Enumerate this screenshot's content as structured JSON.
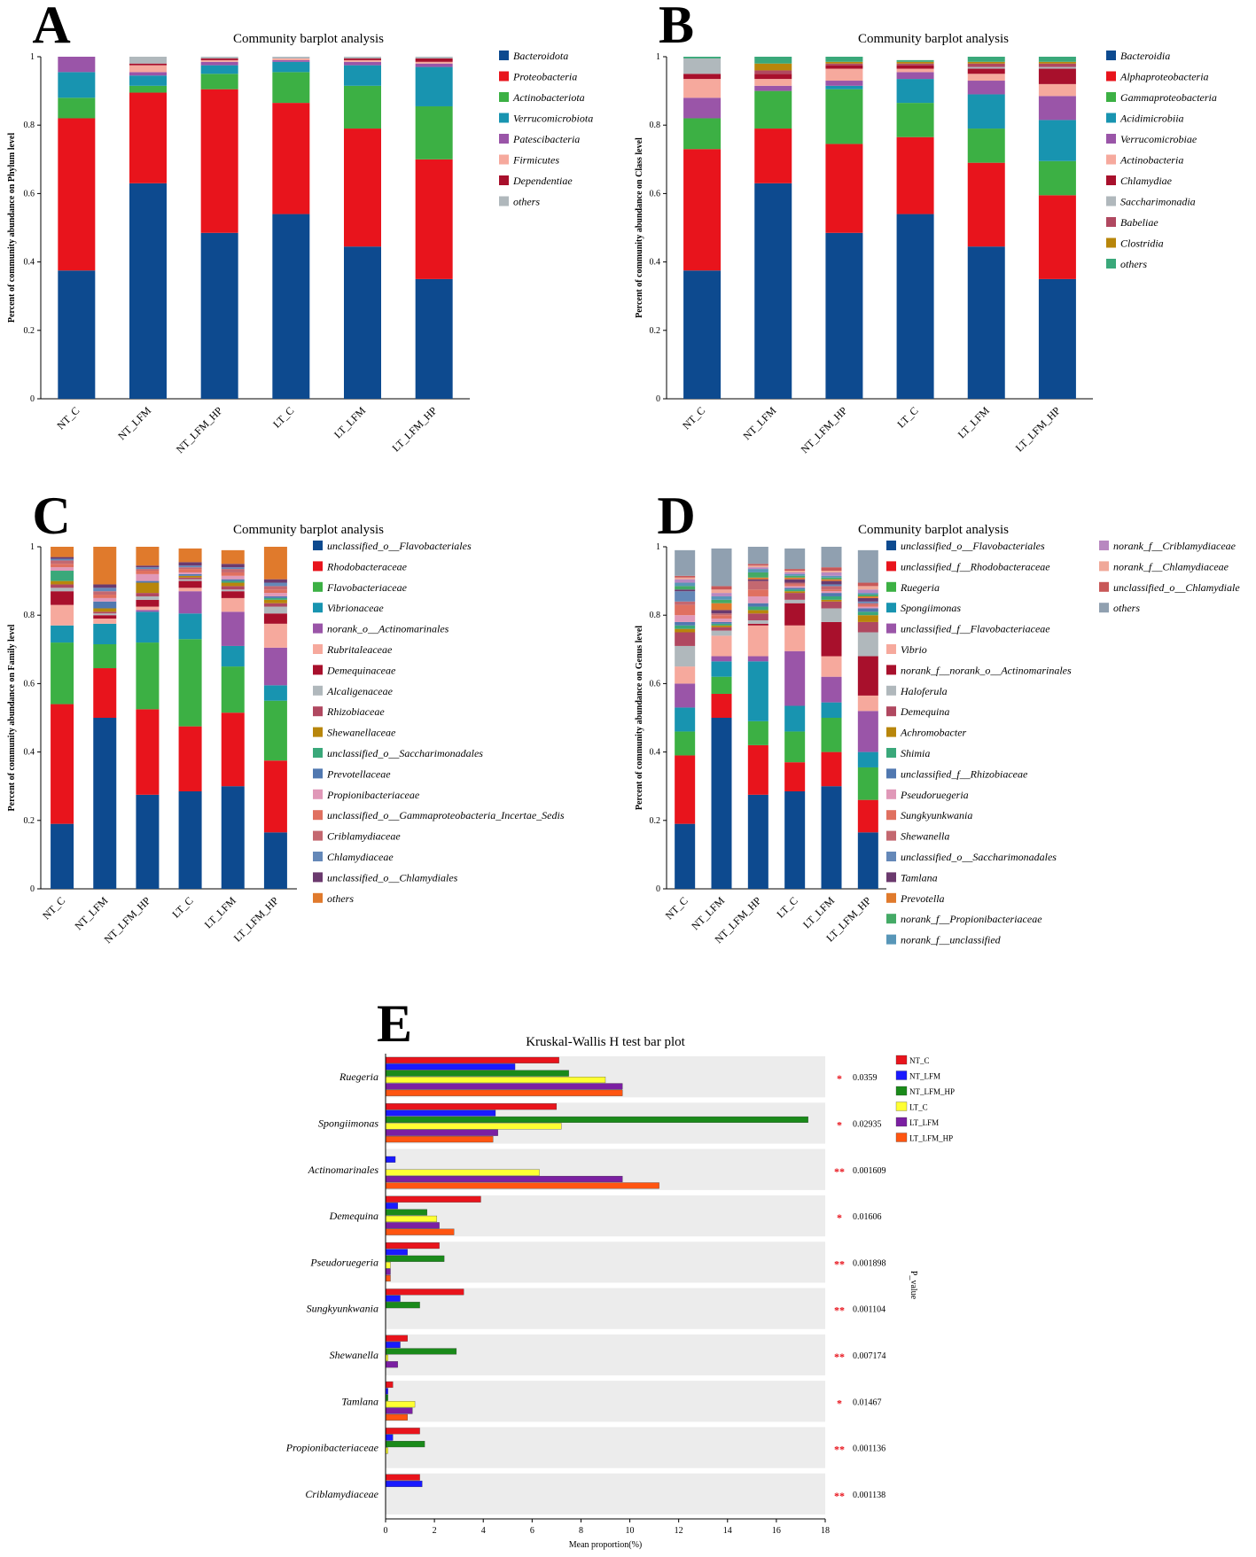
{
  "colors": {
    "navy": "#0d4a8f",
    "red": "#e8141c",
    "green": "#3cb044",
    "teal": "#1894b0",
    "purple": "#9a55a8",
    "salmon": "#f6a99d",
    "crimson": "#a8102c",
    "gray": "#b0b8bc",
    "rosebrown": "#b04860",
    "gold": "#b8860b",
    "mint": "#3aa87a",
    "slate": "#5078b0",
    "pink": "#e098b8",
    "coral": "#e07060",
    "dusty": "#c46870",
    "steel": "#6488b8",
    "plum": "#6b3a6e",
    "orange": "#e07a2c",
    "seagreen": "#44aa66",
    "lightblue": "#5896b8",
    "lilac": "#b888c0",
    "peach": "#f0a898",
    "brick": "#c85858",
    "cadet": "#90a0b0",
    "panelBg": "#ececec"
  },
  "chart_data": [
    {
      "panel": "A",
      "type": "bar",
      "stacked": true,
      "title": "Community barplot analysis",
      "xlabel": "",
      "ylabel": "Percent of community abundance on Phylum level",
      "ylim": [
        0,
        1
      ],
      "yticks": [
        "0",
        "0.2",
        "0.4",
        "0.6",
        "0.8",
        "1"
      ],
      "categories": [
        "NT_C",
        "NT_LFM",
        "NT_LFM_HP",
        "LT_C",
        "LT_LFM",
        "LT_LFM_HP"
      ],
      "series": [
        {
          "name": "Bacteroidota",
          "color": "#0d4a8f",
          "values": [
            0.375,
            0.63,
            0.485,
            0.54,
            0.445,
            0.35
          ]
        },
        {
          "name": "Proteobacteria",
          "color": "#e8141c",
          "values": [
            0.445,
            0.265,
            0.42,
            0.325,
            0.345,
            0.35
          ]
        },
        {
          "name": "Actinobacteriota",
          "color": "#3cb044",
          "values": [
            0.06,
            0.02,
            0.045,
            0.09,
            0.125,
            0.155
          ]
        },
        {
          "name": "Verrucomicrobiota",
          "color": "#1894b0",
          "values": [
            0.075,
            0.03,
            0.025,
            0.03,
            0.06,
            0.115
          ]
        },
        {
          "name": "Patescibacteria",
          "color": "#9a55a8",
          "values": [
            0.045,
            0.01,
            0.01,
            0.005,
            0.01,
            0.01
          ]
        },
        {
          "name": "Firmicutes",
          "color": "#f6a99d",
          "values": [
            0.0,
            0.02,
            0.005,
            0.005,
            0.005,
            0.005
          ]
        },
        {
          "name": "Dependentiae",
          "color": "#a8102c",
          "values": [
            0.0,
            0.005,
            0.005,
            0.0,
            0.005,
            0.01
          ]
        },
        {
          "name": "others",
          "color": "#b0b8bc",
          "values": [
            0.0,
            0.02,
            0.005,
            0.005,
            0.005,
            0.005
          ]
        }
      ]
    },
    {
      "panel": "B",
      "type": "bar",
      "stacked": true,
      "title": "Community barplot analysis",
      "xlabel": "",
      "ylabel": "Percent of community abundance on Class level",
      "ylim": [
        0,
        1
      ],
      "yticks": [
        "0",
        "0.2",
        "0.4",
        "0.6",
        "0.8",
        "1"
      ],
      "categories": [
        "NT_C",
        "NT_LFM",
        "NT_LFM_HP",
        "LT_C",
        "LT_LFM",
        "LT_LFM_HP"
      ],
      "series": [
        {
          "name": "Bacteroidia",
          "color": "#0d4a8f",
          "values": [
            0.375,
            0.63,
            0.485,
            0.54,
            0.445,
            0.35
          ]
        },
        {
          "name": "Alphaproteobacteria",
          "color": "#e8141c",
          "values": [
            0.355,
            0.16,
            0.26,
            0.225,
            0.245,
            0.245
          ]
        },
        {
          "name": "Gammaproteobacteria",
          "color": "#3cb044",
          "values": [
            0.09,
            0.11,
            0.16,
            0.1,
            0.1,
            0.1
          ]
        },
        {
          "name": "Acidimicrobiia",
          "color": "#1894b0",
          "values": [
            0.0,
            0.0,
            0.01,
            0.07,
            0.1,
            0.12
          ]
        },
        {
          "name": "Verrucomicrobiae",
          "color": "#9a55a8",
          "values": [
            0.06,
            0.015,
            0.015,
            0.02,
            0.04,
            0.07
          ]
        },
        {
          "name": "Actinobacteria",
          "color": "#f6a99d",
          "values": [
            0.055,
            0.02,
            0.035,
            0.01,
            0.02,
            0.035
          ]
        },
        {
          "name": "Chlamydiae",
          "color": "#a8102c",
          "values": [
            0.015,
            0.015,
            0.01,
            0.01,
            0.015,
            0.045
          ]
        },
        {
          "name": "Saccharimonadia",
          "color": "#b0b8bc",
          "values": [
            0.045,
            0.0,
            0.0,
            0.0,
            0.005,
            0.005
          ]
        },
        {
          "name": "Babeliae",
          "color": "#b04860",
          "values": [
            0.0,
            0.01,
            0.005,
            0.005,
            0.01,
            0.01
          ]
        },
        {
          "name": "Clostridia",
          "color": "#b8860b",
          "values": [
            0.0,
            0.02,
            0.005,
            0.005,
            0.005,
            0.005
          ]
        },
        {
          "name": "others",
          "color": "#3aa87a",
          "values": [
            0.005,
            0.02,
            0.015,
            0.005,
            0.015,
            0.015
          ]
        }
      ]
    },
    {
      "panel": "C",
      "type": "bar",
      "stacked": true,
      "title": "Community barplot analysis",
      "xlabel": "",
      "ylabel": "Percent of community abundance on Family level",
      "ylim": [
        0,
        1
      ],
      "yticks": [
        "0",
        "0.2",
        "0.4",
        "0.6",
        "0.8",
        "1"
      ],
      "categories": [
        "NT_C",
        "NT_LFM",
        "NT_LFM_HP",
        "LT_C",
        "LT_LFM",
        "LT_LFM_HP"
      ],
      "series": [
        {
          "name": "unclassified_o__Flavobacteriales",
          "color": "#0d4a8f",
          "values": [
            0.19,
            0.5,
            0.275,
            0.285,
            0.3,
            0.165
          ]
        },
        {
          "name": "Rhodobacteraceae",
          "color": "#e8141c",
          "values": [
            0.35,
            0.145,
            0.25,
            0.19,
            0.215,
            0.21
          ]
        },
        {
          "name": "Flavobacteriaceae",
          "color": "#3cb044",
          "values": [
            0.18,
            0.07,
            0.195,
            0.255,
            0.135,
            0.175
          ]
        },
        {
          "name": "Vibrionaceae",
          "color": "#1894b0",
          "values": [
            0.05,
            0.06,
            0.09,
            0.075,
            0.06,
            0.045
          ]
        },
        {
          "name": "norank_o__Actinomarinales",
          "color": "#9a55a8",
          "values": [
            0.0,
            0.0,
            0.005,
            0.065,
            0.1,
            0.11
          ]
        },
        {
          "name": "Rubritaleaceae",
          "color": "#f6a99d",
          "values": [
            0.06,
            0.015,
            0.01,
            0.01,
            0.04,
            0.07
          ]
        },
        {
          "name": "Demequinaceae",
          "color": "#a8102c",
          "values": [
            0.04,
            0.01,
            0.02,
            0.02,
            0.02,
            0.03
          ]
        },
        {
          "name": "Alcaligenaceae",
          "color": "#b0b8bc",
          "values": [
            0.01,
            0.005,
            0.01,
            0.005,
            0.005,
            0.02
          ]
        },
        {
          "name": "Rhizobiaceae",
          "color": "#b04860",
          "values": [
            0.01,
            0.005,
            0.01,
            0.005,
            0.01,
            0.01
          ]
        },
        {
          "name": "Shewanellaceae",
          "color": "#b8860b",
          "values": [
            0.01,
            0.01,
            0.03,
            0.005,
            0.01,
            0.01
          ]
        },
        {
          "name": "unclassified_o__Saccharimonadales",
          "color": "#3aa87a",
          "values": [
            0.03,
            0.0,
            0.0,
            0.0,
            0.005,
            0.005
          ]
        },
        {
          "name": "Prevotellaceae",
          "color": "#5078b0",
          "values": [
            0.0,
            0.02,
            0.005,
            0.005,
            0.005,
            0.005
          ]
        },
        {
          "name": "Propionibacteriaceae",
          "color": "#e098b8",
          "values": [
            0.01,
            0.01,
            0.02,
            0.005,
            0.01,
            0.01
          ]
        },
        {
          "name": "unclassified_o__Gammaproteobacteria_Incertae_Sedis",
          "color": "#e07060",
          "values": [
            0.01,
            0.01,
            0.01,
            0.01,
            0.01,
            0.01
          ]
        },
        {
          "name": "Criblamydiaceae",
          "color": "#c46870",
          "values": [
            0.01,
            0.01,
            0.005,
            0.005,
            0.01,
            0.01
          ]
        },
        {
          "name": "Chlamydiaceae",
          "color": "#6488b8",
          "values": [
            0.005,
            0.01,
            0.005,
            0.005,
            0.005,
            0.01
          ]
        },
        {
          "name": "unclassified_o__Chlamydiales",
          "color": "#6b3a6e",
          "values": [
            0.005,
            0.01,
            0.005,
            0.01,
            0.01,
            0.01
          ]
        },
        {
          "name": "others",
          "color": "#e07a2c",
          "values": [
            0.05,
            0.11,
            0.06,
            0.04,
            0.04,
            0.095
          ]
        }
      ]
    },
    {
      "panel": "D",
      "type": "bar",
      "stacked": true,
      "title": "Community barplot analysis",
      "xlabel": "",
      "ylabel": "Percent of community abundance on Genus level",
      "ylim": [
        0,
        1
      ],
      "yticks": [
        "0",
        "0.2",
        "0.4",
        "0.6",
        "0.8",
        "1"
      ],
      "categories": [
        "NT_C",
        "NT_LFM",
        "NT_LFM_HP",
        "LT_C",
        "LT_LFM",
        "LT_LFM_HP"
      ],
      "series": [
        {
          "name": "unclassified_o__Flavobacteriales",
          "color": "#0d4a8f",
          "values": [
            0.19,
            0.5,
            0.275,
            0.285,
            0.3,
            0.165
          ]
        },
        {
          "name": "unclassified_f__Rhodobacteraceae",
          "color": "#e8141c",
          "values": [
            0.2,
            0.07,
            0.145,
            0.085,
            0.1,
            0.095
          ]
        },
        {
          "name": "Ruegeria",
          "color": "#3cb044",
          "values": [
            0.07,
            0.05,
            0.07,
            0.09,
            0.1,
            0.095
          ]
        },
        {
          "name": "Spongiimonas",
          "color": "#1894b0",
          "values": [
            0.07,
            0.045,
            0.175,
            0.075,
            0.045,
            0.045
          ]
        },
        {
          "name": "unclassified_f__Flavobacteriaceae",
          "color": "#9a55a8",
          "values": [
            0.07,
            0.015,
            0.015,
            0.16,
            0.075,
            0.12
          ]
        },
        {
          "name": "Vibrio",
          "color": "#f6a99d",
          "values": [
            0.05,
            0.06,
            0.09,
            0.075,
            0.06,
            0.045
          ]
        },
        {
          "name": "norank_f__norank_o__Actinomarinales",
          "color": "#a8102c",
          "values": [
            0.0,
            0.0,
            0.005,
            0.065,
            0.1,
            0.115
          ]
        },
        {
          "name": "Haloferula",
          "color": "#b0b8bc",
          "values": [
            0.06,
            0.015,
            0.01,
            0.01,
            0.04,
            0.07
          ]
        },
        {
          "name": "Demequina",
          "color": "#b04860",
          "values": [
            0.04,
            0.01,
            0.02,
            0.02,
            0.02,
            0.03
          ]
        },
        {
          "name": "Achromobacter",
          "color": "#b8860b",
          "values": [
            0.01,
            0.005,
            0.01,
            0.005,
            0.005,
            0.02
          ]
        },
        {
          "name": "Shimia",
          "color": "#3aa87a",
          "values": [
            0.01,
            0.005,
            0.01,
            0.005,
            0.01,
            0.01
          ]
        },
        {
          "name": "unclassified_f__Rhizobiaceae",
          "color": "#5078b0",
          "values": [
            0.01,
            0.005,
            0.01,
            0.005,
            0.01,
            0.01
          ]
        },
        {
          "name": "Pseudoruegeria",
          "color": "#e098b8",
          "values": [
            0.02,
            0.01,
            0.02,
            0.005,
            0.005,
            0.005
          ]
        },
        {
          "name": "Sungkyunkwania",
          "color": "#e07060",
          "values": [
            0.03,
            0.01,
            0.02,
            0.005,
            0.005,
            0.005
          ]
        },
        {
          "name": "Shewanella",
          "color": "#c46870",
          "values": [
            0.01,
            0.005,
            0.025,
            0.005,
            0.01,
            0.005
          ]
        },
        {
          "name": "unclassified_o__Saccharimonadales",
          "color": "#6488b8",
          "values": [
            0.03,
            0.0,
            0.0,
            0.0,
            0.005,
            0.005
          ]
        },
        {
          "name": "Tamlana",
          "color": "#6b3a6e",
          "values": [
            0.005,
            0.01,
            0.005,
            0.01,
            0.01,
            0.01
          ]
        },
        {
          "name": "Prevotella",
          "color": "#e07a2c",
          "values": [
            0.0,
            0.02,
            0.005,
            0.005,
            0.005,
            0.005
          ]
        },
        {
          "name": "norank_f__Propionibacteriaceae",
          "color": "#44aa66",
          "values": [
            0.01,
            0.01,
            0.015,
            0.005,
            0.005,
            0.005
          ]
        },
        {
          "name": "norank_f__unclassified",
          "color": "#5896b8",
          "values": [
            0.01,
            0.01,
            0.01,
            0.005,
            0.005,
            0.005
          ]
        },
        {
          "name": "norank_f__Criblamydiaceae",
          "color": "#b888c0",
          "values": [
            0.01,
            0.01,
            0.005,
            0.005,
            0.01,
            0.01
          ]
        },
        {
          "name": "norank_f__Chlamydiaceae",
          "color": "#f0a898",
          "values": [
            0.005,
            0.01,
            0.005,
            0.005,
            0.005,
            0.01
          ]
        },
        {
          "name": "unclassified_o__Chlamydiale",
          "color": "#c85858",
          "values": [
            0.005,
            0.01,
            0.005,
            0.005,
            0.01,
            0.01
          ]
        },
        {
          "name": "others",
          "color": "#90a0b0",
          "values": [
            0.075,
            0.11,
            0.065,
            0.06,
            0.075,
            0.095
          ]
        }
      ]
    },
    {
      "panel": "E",
      "type": "bar",
      "orientation": "horizontal",
      "title": "Kruskal-Wallis H test bar plot",
      "xlabel": "Mean proportion(%)",
      "ylabel": "P_value",
      "xlim": [
        0,
        18
      ],
      "xticks": [
        "0",
        "2",
        "4",
        "6",
        "8",
        "10",
        "12",
        "14",
        "16",
        "18"
      ],
      "categories": [
        "Ruegeria",
        "Spongiimonas",
        "Actinomarinales",
        "Demequina",
        "Pseudoruegeria",
        "Sungkyunkwania",
        "Shewanella",
        "Tamlana",
        "Propionibacteriaceae",
        "Criblamydiaceae"
      ],
      "stars": [
        "*",
        "*",
        "**",
        "*",
        "**",
        "**",
        "**",
        "*",
        "**",
        "**"
      ],
      "p_values": [
        "0.0359",
        "0.02935",
        "0.001609",
        "0.01606",
        "0.001898",
        "0.001104",
        "0.007174",
        "0.01467",
        "0.001136",
        "0.001138"
      ],
      "series": [
        {
          "name": "NT_C",
          "color": "#e8141c",
          "values": [
            7.1,
            7.0,
            0.0,
            3.9,
            2.2,
            3.2,
            0.9,
            0.3,
            1.4,
            1.4
          ]
        },
        {
          "name": "NT_LFM",
          "color": "#1a1aff",
          "values": [
            5.3,
            4.5,
            0.4,
            0.5,
            0.9,
            0.6,
            0.6,
            0.1,
            0.3,
            1.5
          ]
        },
        {
          "name": "NT_LFM_HP",
          "color": "#1a8a1a",
          "values": [
            7.5,
            17.3,
            0.0,
            1.7,
            2.4,
            1.4,
            2.9,
            0.1,
            1.6,
            0.0
          ]
        },
        {
          "name": "LT_C",
          "color": "#ffff33",
          "values": [
            9.0,
            7.2,
            6.3,
            2.1,
            0.2,
            0.0,
            0.1,
            1.2,
            0.1,
            0.0
          ]
        },
        {
          "name": "LT_LFM",
          "color": "#7b1fa2",
          "values": [
            9.7,
            4.6,
            9.7,
            2.2,
            0.2,
            0.0,
            0.5,
            1.1,
            0.0,
            0.0
          ]
        },
        {
          "name": "LT_LFM_HP",
          "color": "#ff5511",
          "values": [
            9.7,
            4.4,
            11.2,
            2.8,
            0.2,
            0.0,
            0.0,
            0.9,
            0.0,
            0.0
          ]
        }
      ]
    }
  ]
}
